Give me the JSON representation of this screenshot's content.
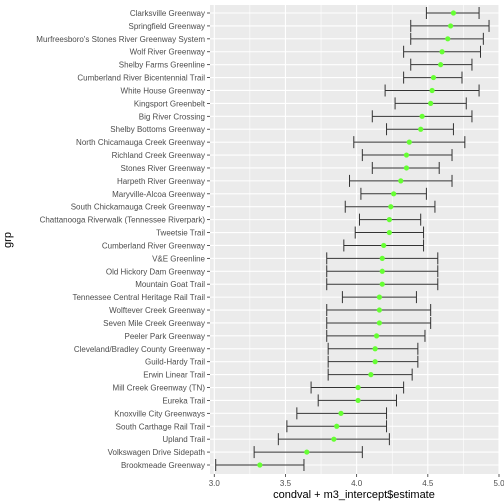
{
  "chart_data": {
    "type": "scatter",
    "subtype": "point-range",
    "xlabel": "condval + m3_intercept$estimate",
    "ylabel": "grp",
    "xlim": [
      2.97,
      5.0
    ],
    "xticks": [
      3.0,
      3.5,
      4.0,
      4.5,
      5.0
    ],
    "xtick_labels": [
      "3.0",
      "3.5",
      "4.0",
      "4.5",
      "5.0"
    ],
    "grid": true,
    "panel_color": "#ebebeb",
    "grid_color": "#ffffff",
    "point_color": "#66ff33",
    "errorbar_color": "#333333",
    "points": [
      {
        "name": "Clarksville Greenway",
        "estimate": 4.68,
        "lower": 4.49,
        "upper": 4.86
      },
      {
        "name": "Springfield Greenway",
        "estimate": 4.66,
        "lower": 4.38,
        "upper": 4.93
      },
      {
        "name": "Murfreesboro's Stones River Greenway System",
        "estimate": 4.64,
        "lower": 4.38,
        "upper": 4.89
      },
      {
        "name": "Wolf River Greenway",
        "estimate": 4.6,
        "lower": 4.33,
        "upper": 4.87
      },
      {
        "name": "Shelby Farms Greenline",
        "estimate": 4.59,
        "lower": 4.38,
        "upper": 4.81
      },
      {
        "name": "Cumberland River Bicentennial Trail",
        "estimate": 4.54,
        "lower": 4.33,
        "upper": 4.74
      },
      {
        "name": "White House Greenway",
        "estimate": 4.53,
        "lower": 4.2,
        "upper": 4.86
      },
      {
        "name": "Kingsport Greenbelt",
        "estimate": 4.52,
        "lower": 4.27,
        "upper": 4.77
      },
      {
        "name": "Big River Crossing",
        "estimate": 4.46,
        "lower": 4.11,
        "upper": 4.81
      },
      {
        "name": "Shelby Bottoms Greenway",
        "estimate": 4.45,
        "lower": 4.21,
        "upper": 4.68
      },
      {
        "name": "North Chicamauga Creek Greenway",
        "estimate": 4.37,
        "lower": 3.98,
        "upper": 4.76
      },
      {
        "name": "Richland Creek Greenway",
        "estimate": 4.35,
        "lower": 4.04,
        "upper": 4.67
      },
      {
        "name": "Stones River Greenway",
        "estimate": 4.35,
        "lower": 4.11,
        "upper": 4.58
      },
      {
        "name": "Harpeth River Greenway",
        "estimate": 4.31,
        "lower": 3.95,
        "upper": 4.67
      },
      {
        "name": "Maryville-Alcoa Greenway",
        "estimate": 4.26,
        "lower": 4.03,
        "upper": 4.49
      },
      {
        "name": "South Chickamauga Creek Greenway",
        "estimate": 4.24,
        "lower": 3.92,
        "upper": 4.55
      },
      {
        "name": "Chattanooga Riverwalk (Tennessee Riverpark)",
        "estimate": 4.23,
        "lower": 4.02,
        "upper": 4.45
      },
      {
        "name": "Tweetsie Trail",
        "estimate": 4.23,
        "lower": 3.99,
        "upper": 4.47
      },
      {
        "name": "Cumberland River Greenway",
        "estimate": 4.19,
        "lower": 3.91,
        "upper": 4.47
      },
      {
        "name": "V&E Greenline",
        "estimate": 4.18,
        "lower": 3.79,
        "upper": 4.57
      },
      {
        "name": "Old Hickory Dam Greenway",
        "estimate": 4.18,
        "lower": 3.79,
        "upper": 4.57
      },
      {
        "name": "Mountain Goat Trail",
        "estimate": 4.18,
        "lower": 3.79,
        "upper": 4.57
      },
      {
        "name": "Tennessee Central Heritage Rail Trail",
        "estimate": 4.16,
        "lower": 3.9,
        "upper": 4.42
      },
      {
        "name": "Wolftever Creek Greenway",
        "estimate": 4.16,
        "lower": 3.79,
        "upper": 4.52
      },
      {
        "name": "Seven Mile Creek Greenway",
        "estimate": 4.16,
        "lower": 3.79,
        "upper": 4.52
      },
      {
        "name": "Peeler Park Greenway",
        "estimate": 4.14,
        "lower": 3.79,
        "upper": 4.48
      },
      {
        "name": "Cleveland/Bradley County Greenway",
        "estimate": 4.13,
        "lower": 3.8,
        "upper": 4.43
      },
      {
        "name": "Guild-Hardy Trail",
        "estimate": 4.13,
        "lower": 3.8,
        "upper": 4.43
      },
      {
        "name": "Erwin Linear Trail",
        "estimate": 4.1,
        "lower": 3.8,
        "upper": 4.39
      },
      {
        "name": "Mill Creek Greenway (TN)",
        "estimate": 4.01,
        "lower": 3.68,
        "upper": 4.33
      },
      {
        "name": "Eureka Trail",
        "estimate": 4.01,
        "lower": 3.73,
        "upper": 4.28
      },
      {
        "name": "Knoxville City Greenways",
        "estimate": 3.89,
        "lower": 3.58,
        "upper": 4.21
      },
      {
        "name": "South Carthage Rail Trail",
        "estimate": 3.86,
        "lower": 3.51,
        "upper": 4.21
      },
      {
        "name": "Upland Trail",
        "estimate": 3.84,
        "lower": 3.45,
        "upper": 4.23
      },
      {
        "name": "Volkswagen Drive Sidepath",
        "estimate": 3.65,
        "lower": 3.28,
        "upper": 4.04
      },
      {
        "name": "Brookmeade Greenway",
        "estimate": 3.32,
        "lower": 3.01,
        "upper": 3.63
      }
    ]
  }
}
